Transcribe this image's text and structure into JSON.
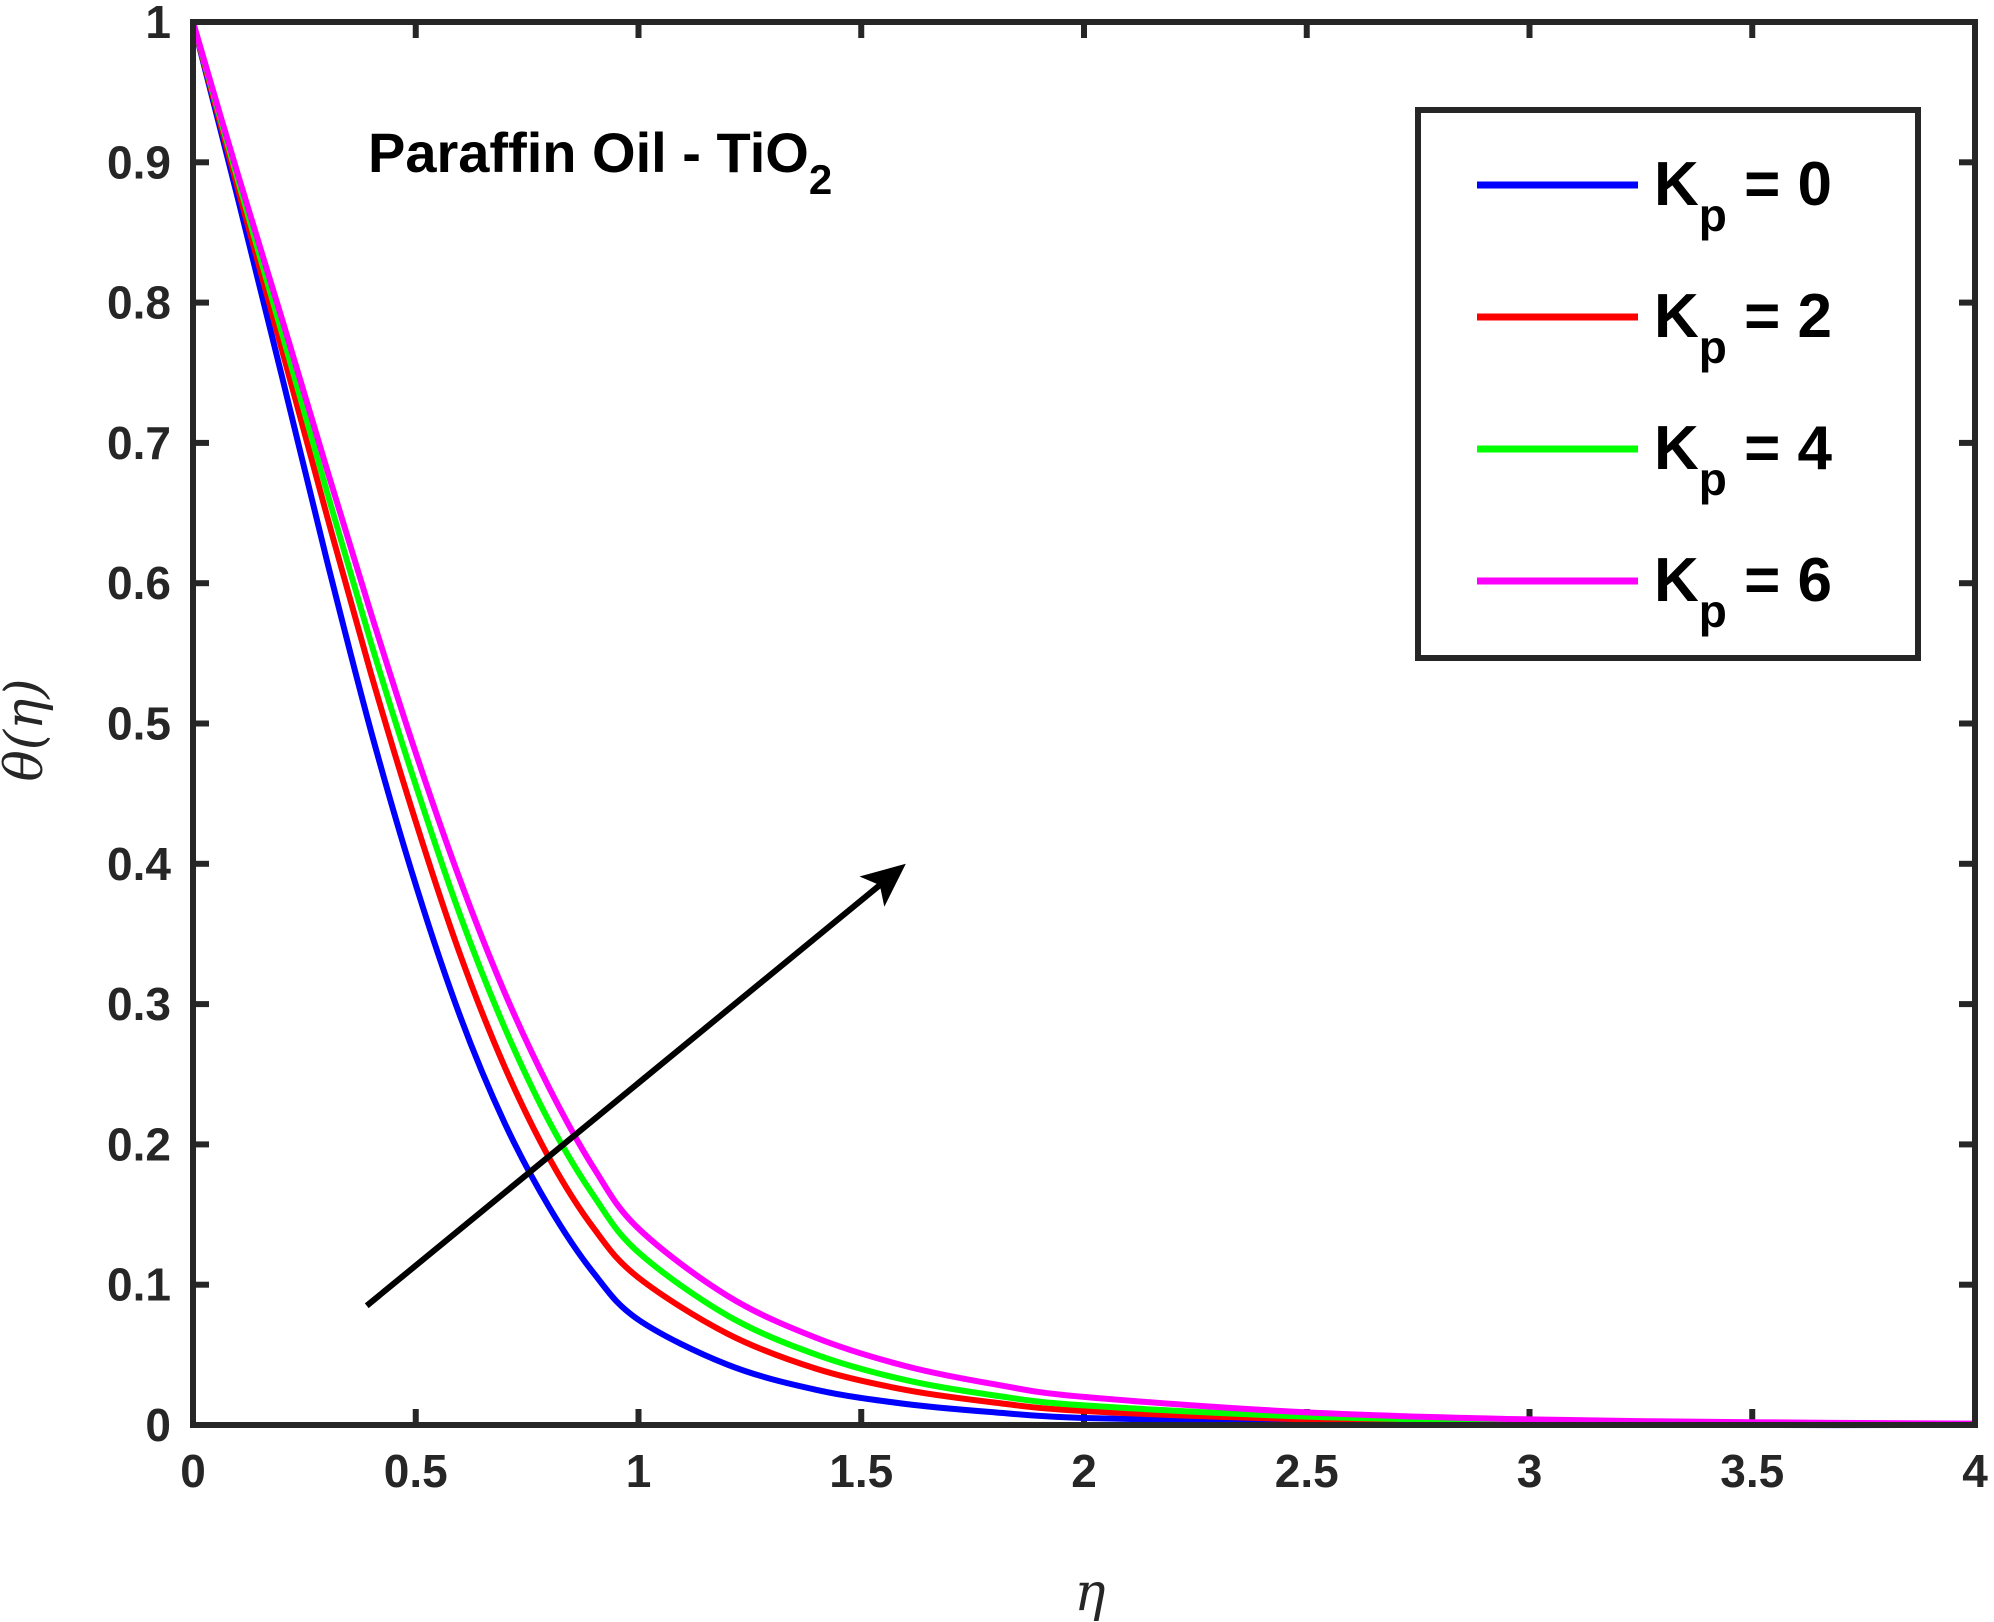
{
  "chart_data": {
    "type": "line",
    "title": "",
    "xlabel": "η",
    "ylabel": "θ(η)",
    "xlim": [
      0,
      4
    ],
    "ylim": [
      0,
      1
    ],
    "xticks": [
      0,
      0.5,
      1,
      1.5,
      2,
      2.5,
      3,
      3.5,
      4
    ],
    "yticks": [
      0,
      0.1,
      0.2,
      0.3,
      0.4,
      0.5,
      0.6,
      0.7,
      0.8,
      0.9,
      1
    ],
    "xtick_labels": [
      "0",
      "0.5",
      "1",
      "1.5",
      "2",
      "2.5",
      "3",
      "3.5",
      "4"
    ],
    "ytick_labels": [
      "0",
      "0.1",
      "0.2",
      "0.3",
      "0.4",
      "0.5",
      "0.6",
      "0.7",
      "0.8",
      "0.9",
      "1"
    ],
    "grid": false,
    "legend_position": "top-right",
    "annotation": {
      "text": "Paraffin Oil - TiO",
      "subscript": "2",
      "arrow_from": [
        0.39,
        0.085
      ],
      "arrow_to": [
        1.6,
        0.4
      ]
    },
    "x": [
      0,
      0.1,
      0.2,
      0.3,
      0.4,
      0.5,
      0.6,
      0.7,
      0.8,
      0.9,
      1.0,
      1.2,
      1.4,
      1.6,
      1.8,
      2.0,
      2.5,
      3.0,
      3.5,
      4.0
    ],
    "series": [
      {
        "name": "K = 0",
        "label_main": "K",
        "label_sub": "p",
        "label_value": " = 0",
        "color": "#0000ff",
        "values": [
          1.0,
          0.875,
          0.747,
          0.617,
          0.494,
          0.385,
          0.291,
          0.215,
          0.155,
          0.108,
          0.075,
          0.043,
          0.025,
          0.015,
          0.009,
          0.005,
          0.002,
          0.001,
          0.0,
          0.0
        ]
      },
      {
        "name": "K = 2",
        "label_main": "K",
        "label_sub": "p",
        "label_value": " = 2",
        "color": "#ff0000",
        "values": [
          1.0,
          0.882,
          0.766,
          0.649,
          0.535,
          0.43,
          0.335,
          0.255,
          0.19,
          0.14,
          0.105,
          0.065,
          0.04,
          0.025,
          0.016,
          0.01,
          0.004,
          0.002,
          0.001,
          0.0
        ]
      },
      {
        "name": "K = 4",
        "label_main": "K",
        "label_sub": "p",
        "label_value": " = 4",
        "color": "#00ff00",
        "values": [
          1.0,
          0.888,
          0.778,
          0.666,
          0.557,
          0.456,
          0.363,
          0.283,
          0.216,
          0.163,
          0.123,
          0.078,
          0.05,
          0.032,
          0.021,
          0.014,
          0.006,
          0.003,
          0.001,
          0.0
        ]
      },
      {
        "name": "K = 6",
        "label_main": "K",
        "label_sub": "p",
        "label_value": " = 6",
        "color": "#ff00ff",
        "values": [
          1.0,
          0.892,
          0.788,
          0.682,
          0.578,
          0.479,
          0.388,
          0.308,
          0.24,
          0.183,
          0.14,
          0.092,
          0.062,
          0.042,
          0.029,
          0.02,
          0.009,
          0.004,
          0.002,
          0.001
        ]
      }
    ]
  }
}
